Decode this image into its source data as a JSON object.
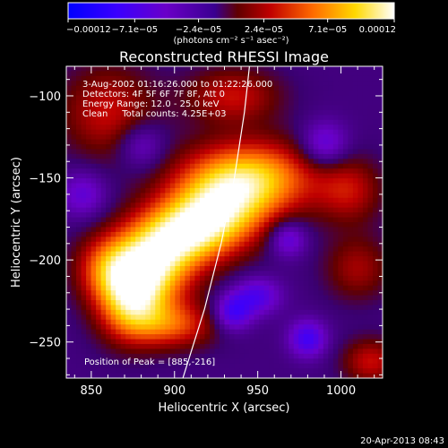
{
  "chart_data": {
    "type": "heatmap",
    "title": "Reconstructed RHESSI Image",
    "xlabel": "Heliocentric X (arcsec)",
    "ylabel": "Heliocentric Y (arcsec)",
    "xlim": [
      835,
      1025
    ],
    "ylim": [
      -272,
      -82
    ],
    "x_ticks": [
      {
        "value": 850,
        "label": "850"
      },
      {
        "value": 900,
        "label": "900"
      },
      {
        "value": 950,
        "label": "950"
      },
      {
        "value": 1000,
        "label": "1000"
      }
    ],
    "y_ticks": [
      {
        "value": -100,
        "label": "−100"
      },
      {
        "value": -150,
        "label": "−150"
      },
      {
        "value": -200,
        "label": "−200"
      },
      {
        "value": -250,
        "label": "−250"
      }
    ],
    "colorbar": {
      "range": [
        -0.00012,
        0.00012
      ],
      "ticks": [
        {
          "value": -0.00012,
          "label": "−0.00012"
        },
        {
          "value": -7.1e-05,
          "label": "−7.1e−05"
        },
        {
          "value": -2.4e-05,
          "label": "−2.4e−05"
        },
        {
          "value": 2.4e-05,
          "label": "2.4e−05"
        },
        {
          "value": 7.1e-05,
          "label": "7.1e−05"
        },
        {
          "value": 0.00012,
          "label": "0.00012"
        }
      ],
      "units": "(photons cm⁻² s⁻¹ asec⁻²)",
      "colors": [
        "#0000ff",
        "#6a00c8",
        "#4a00a0",
        "#c00000",
        "#ff6a00",
        "#ffd800",
        "#ffffff"
      ]
    },
    "annotations": [
      "3-Aug-2002 01:16:26.000 to 01:22:26.000",
      "Detectors: 4F 5F 6F 7F 8F, Att 0",
      "Energy Range: 12.0 - 25.0 keV",
      "Clean     Total counts: 4.25E+03"
    ],
    "peak_label": "Position of Peak = [885,-216]",
    "limb_curve": [
      [
        905,
        -272
      ],
      [
        918,
        -230
      ],
      [
        928,
        -190
      ],
      [
        936,
        -150
      ],
      [
        942,
        -110
      ],
      [
        945,
        -82
      ]
    ],
    "emission_blobs": [
      {
        "x": 945,
        "y": -150,
        "sx": 28,
        "sy": 16,
        "amp": 0.000105
      },
      {
        "x": 925,
        "y": -172,
        "sx": 22,
        "sy": 16,
        "amp": 9e-05
      },
      {
        "x": 905,
        "y": -185,
        "sx": 20,
        "sy": 14,
        "amp": 8e-05
      },
      {
        "x": 885,
        "y": -205,
        "sx": 18,
        "sy": 18,
        "amp": 0.000112
      },
      {
        "x": 873,
        "y": -228,
        "sx": 14,
        "sy": 16,
        "amp": 8e-05
      },
      {
        "x": 900,
        "y": -240,
        "sx": 18,
        "sy": 10,
        "amp": 6e-05
      },
      {
        "x": 860,
        "y": -205,
        "sx": 14,
        "sy": 14,
        "amp": 6e-05
      },
      {
        "x": 860,
        "y": -110,
        "sx": 20,
        "sy": 20,
        "amp": 5e-05
      },
      {
        "x": 935,
        "y": -100,
        "sx": 20,
        "sy": 12,
        "amp": 5e-05
      },
      {
        "x": 1005,
        "y": -158,
        "sx": 14,
        "sy": 14,
        "amp": 4.5e-05
      },
      {
        "x": 1010,
        "y": -205,
        "sx": 14,
        "sy": 14,
        "amp": 4e-05
      },
      {
        "x": 1018,
        "y": -262,
        "sx": 12,
        "sy": 10,
        "amp": 5e-05
      },
      {
        "x": 980,
        "y": -248,
        "sx": 8,
        "sy": 8,
        "amp": -6e-05
      },
      {
        "x": 935,
        "y": -232,
        "sx": 8,
        "sy": 8,
        "amp": -6e-05
      },
      {
        "x": 950,
        "y": -222,
        "sx": 10,
        "sy": 8,
        "amp": -5e-05
      },
      {
        "x": 968,
        "y": -187,
        "sx": 8,
        "sy": 8,
        "amp": -5e-05
      },
      {
        "x": 990,
        "y": -130,
        "sx": 10,
        "sy": 10,
        "amp": -5e-05
      },
      {
        "x": 845,
        "y": -160,
        "sx": 10,
        "sy": 10,
        "amp": -4e-05
      },
      {
        "x": 880,
        "y": -130,
        "sx": 10,
        "sy": 10,
        "amp": -4e-05
      }
    ]
  },
  "footer": {
    "timestamp": "20-Apr-2013 08:43"
  }
}
